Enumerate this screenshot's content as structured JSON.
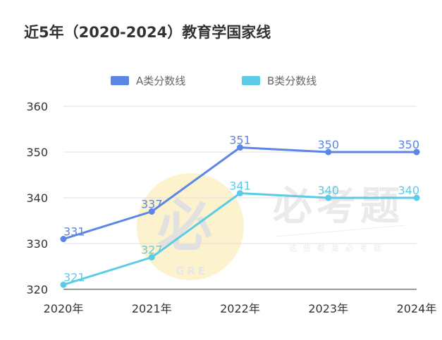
{
  "chart_data": {
    "type": "line",
    "title": "近5年（2020-2024）教育学国家线",
    "categories": [
      "2020年",
      "2021年",
      "2022年",
      "2023年",
      "2024年"
    ],
    "series": [
      {
        "name": "A类分数线",
        "values": [
          331,
          337,
          351,
          350,
          350
        ],
        "color": "#5b86e5"
      },
      {
        "name": "B类分数线",
        "values": [
          321,
          327,
          341,
          340,
          340
        ],
        "color": "#5ccbe8"
      }
    ],
    "ylim": [
      320,
      360
    ],
    "yticks": [
      "320",
      "330",
      "340",
      "350",
      "360"
    ],
    "grid": true,
    "legend": "top-center",
    "data_labels": true
  },
  "watermark": {
    "circle_text": "必",
    "circle_sub": "GRE",
    "main_text": "必考题",
    "sub_text": "这些都是必考题"
  }
}
